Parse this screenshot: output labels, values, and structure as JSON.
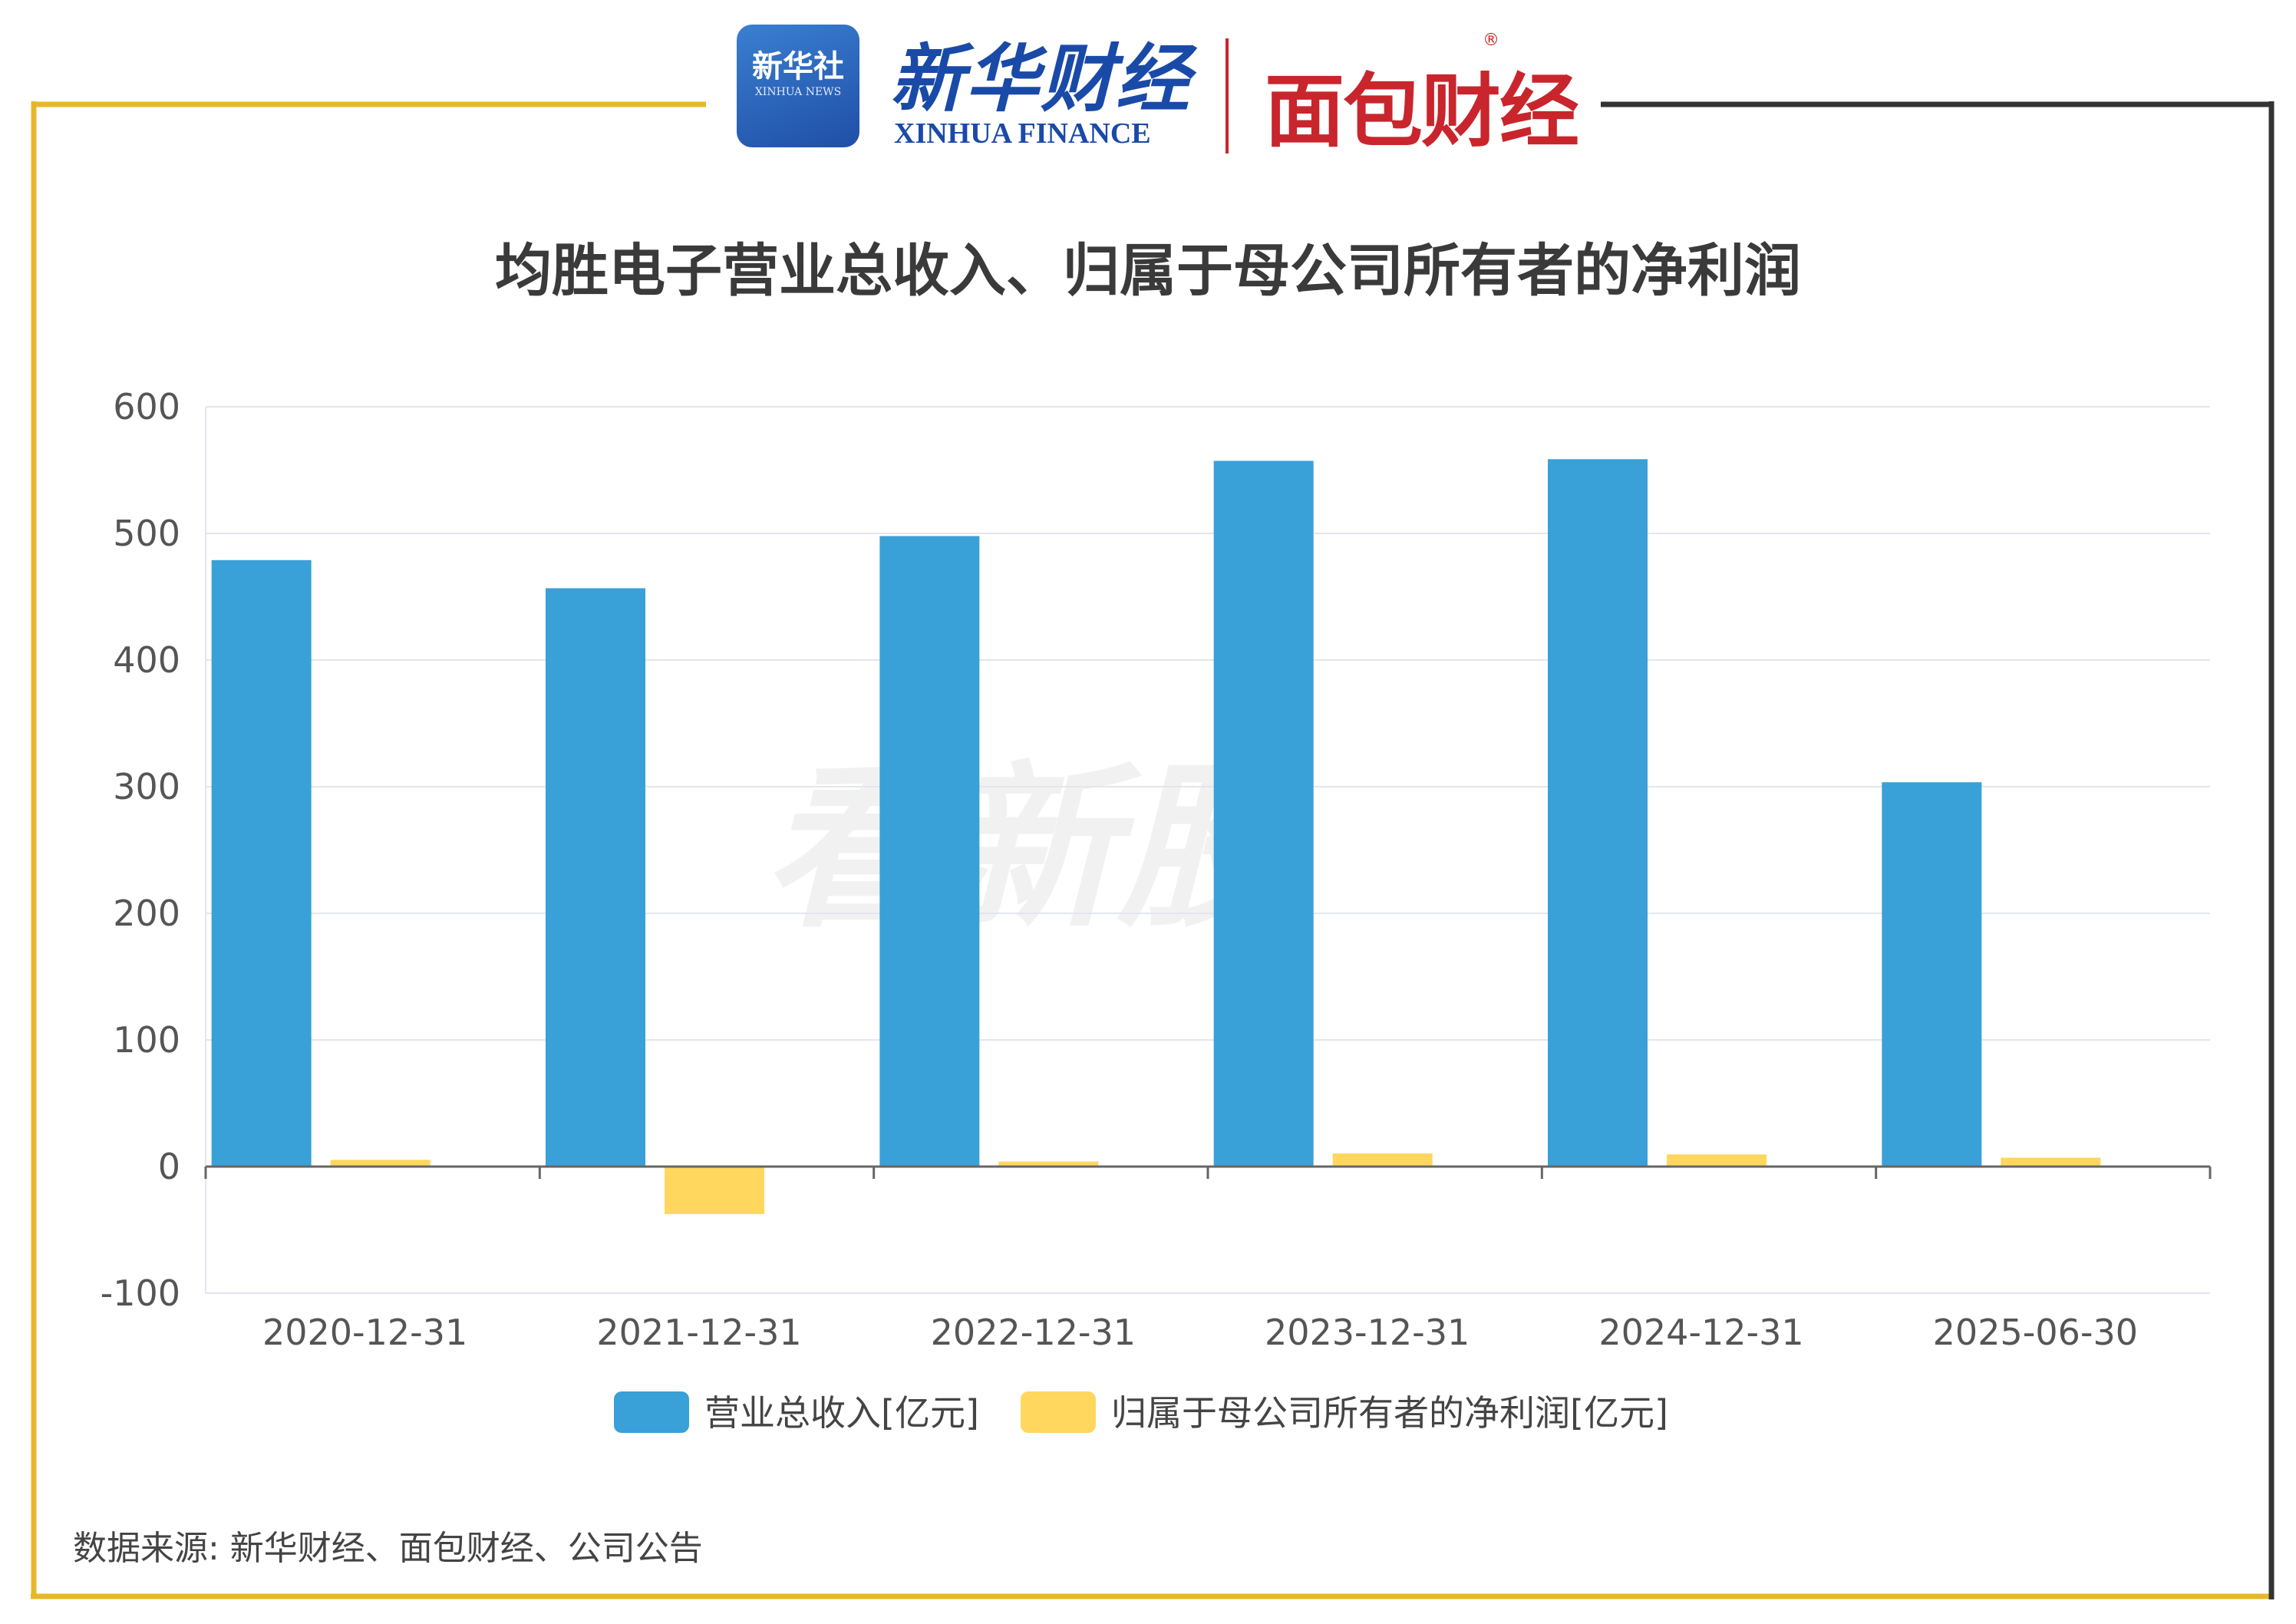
{
  "header": {
    "xinhua_badge": "新华社",
    "xinhua_badge_en": "XINHUA NEWS",
    "xinhua_finance_cn": "新华财经",
    "xinhua_finance_en": "XINHUA FINANCE",
    "mianbao_finance": "面包财经",
    "registered_mark": "®"
  },
  "watermark": "看新股",
  "source": "数据来源: 新华财经、面包财经、公司公告",
  "colors": {
    "revenue": "#3aa0d8",
    "profit": "#ffd75e",
    "frame_gold": "#e8b729",
    "frame_dark": "#333333"
  },
  "chart_data": {
    "type": "bar",
    "title": "均胜电子营业总收入、归属于母公司所有者的净利润",
    "categories": [
      "2020-12-31",
      "2021-12-31",
      "2022-12-31",
      "2023-12-31",
      "2024-12-31",
      "2025-06-30"
    ],
    "series": [
      {
        "name": "营业总收入[亿元]",
        "values": [
          478.9,
          456.7,
          497.9,
          557.3,
          558.6,
          303.5
        ]
      },
      {
        "name": "归属于母公司所有者的净利润[亿元]",
        "values": [
          5.3,
          -37.5,
          4.0,
          10.4,
          9.6,
          7.0
        ]
      }
    ],
    "ylim": [
      -100,
      600
    ],
    "yticks": [
      600,
      500,
      400,
      300,
      200,
      100,
      0,
      -100
    ],
    "xlabel": "",
    "ylabel": "",
    "grid": true,
    "legend_position": "bottom"
  }
}
